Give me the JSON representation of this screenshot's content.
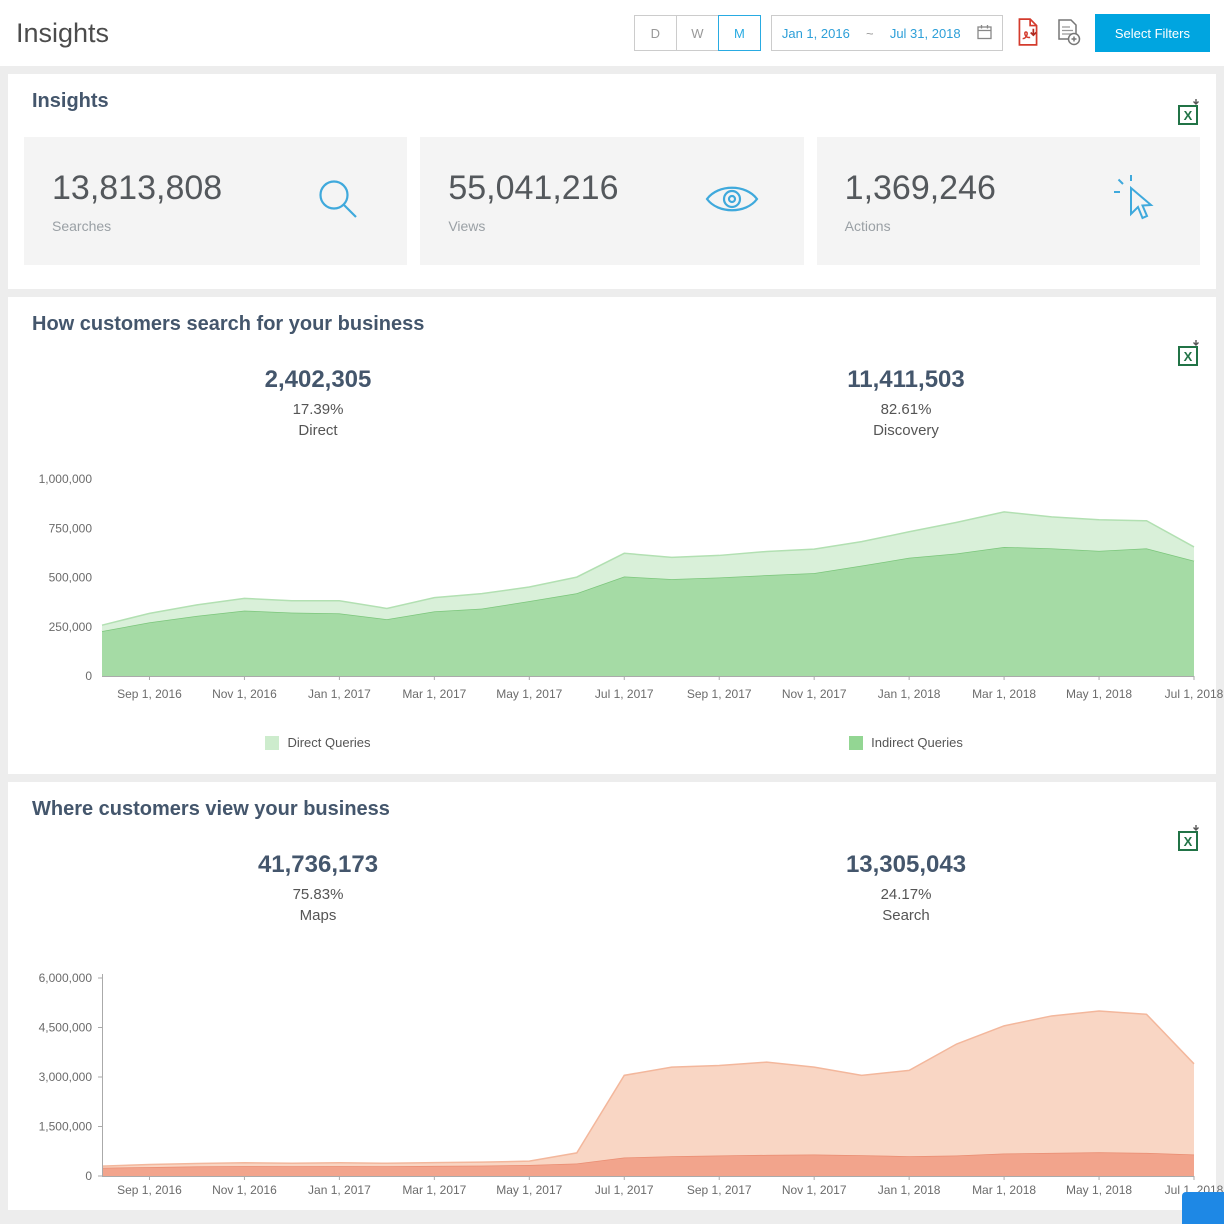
{
  "header": {
    "title": "Insights",
    "granularity": [
      {
        "label": "D",
        "active": false
      },
      {
        "label": "W",
        "active": false
      },
      {
        "label": "M",
        "active": true
      }
    ],
    "date_range": {
      "start": "Jan 1, 2016",
      "separator": "~",
      "end": "Jul 31, 2018"
    },
    "select_filters_label": "Select Filters",
    "accent_blue": "#29abe2",
    "button_blue": "#00a5e0"
  },
  "summary": {
    "title": "Insights",
    "stats": [
      {
        "value": "13,813,808",
        "label": "Searches",
        "icon": "search-icon"
      },
      {
        "value": "55,041,216",
        "label": "Views",
        "icon": "eye-icon"
      },
      {
        "value": "1,369,246",
        "label": "Actions",
        "icon": "click-icon"
      }
    ],
    "icon_color": "#3fa9dc"
  },
  "search_section": {
    "title": "How customers search for your business",
    "stats": [
      {
        "value": "2,402,305",
        "percent": "17.39%",
        "label": "Direct"
      },
      {
        "value": "11,411,503",
        "percent": "82.61%",
        "label": "Discovery"
      }
    ]
  },
  "views_section": {
    "title": "Where customers view your business",
    "stats": [
      {
        "value": "41,736,173",
        "percent": "75.83%",
        "label": "Maps"
      },
      {
        "value": "13,305,043",
        "percent": "24.17%",
        "label": "Search"
      }
    ]
  },
  "chart_data": [
    {
      "id": "queries",
      "type": "area",
      "stacked": true,
      "title": "How customers search for your business",
      "ylim": [
        0,
        1000000
      ],
      "y_ticks": [
        "0",
        "250,000",
        "500,000",
        "750,000",
        "1,000,000"
      ],
      "x_labels": [
        "Sep 1, 2016",
        "Nov 1, 2016",
        "Jan 1, 2017",
        "Mar 1, 2017",
        "May 1, 2017",
        "Jul 1, 2017",
        "Sep 1, 2017",
        "Nov 1, 2017",
        "Jan 1, 2018",
        "Mar 1, 2018",
        "May 1, 2018",
        "Jul 1, 2018"
      ],
      "x_label_first_index": 1,
      "x_label_step": 2,
      "y_axis_line": false,
      "series": [
        {
          "name": "Indirect Queries",
          "fill": "#a5dba5",
          "line": "#7bc67b",
          "values": [
            228000,
            272000,
            305000,
            332000,
            322000,
            318000,
            288000,
            328000,
            342000,
            380000,
            420000,
            505000,
            492000,
            500000,
            512000,
            522000,
            560000,
            600000,
            622000,
            655000,
            648000,
            635000,
            648000,
            585000
          ]
        },
        {
          "name": "Direct Queries",
          "fill": "#d9f0d9",
          "line": "#b2e0b2",
          "values": [
            30000,
            46000,
            56000,
            62000,
            60000,
            64000,
            55000,
            70000,
            76000,
            72000,
            82000,
            118000,
            110000,
            112000,
            120000,
            122000,
            122000,
            132000,
            158000,
            178000,
            160000,
            158000,
            140000,
            70000
          ]
        }
      ],
      "legend": [
        {
          "label": "Direct Queries",
          "color": "#cdeccd"
        },
        {
          "label": "Indirect Queries",
          "color": "#93d693"
        }
      ]
    },
    {
      "id": "views",
      "type": "area",
      "stacked": true,
      "title": "Where customers view your business",
      "ylim": [
        0,
        6000000
      ],
      "y_ticks": [
        "0",
        "1,500,000",
        "3,000,000",
        "4,500,000",
        "6,000,000"
      ],
      "x_labels": [
        "Sep 1, 2016",
        "Nov 1, 2016",
        "Jan 1, 2017",
        "Mar 1, 2017",
        "May 1, 2017",
        "Jul 1, 2017",
        "Sep 1, 2017",
        "Nov 1, 2017",
        "Jan 1, 2018",
        "Mar 1, 2018",
        "May 1, 2018",
        "Jul 1, 2018"
      ],
      "x_label_first_index": 1,
      "x_label_step": 2,
      "y_axis_line": true,
      "series": [
        {
          "name": "Search",
          "fill": "#f2a48c",
          "line": "#ea8d72",
          "values": [
            250000,
            270000,
            290000,
            300000,
            295000,
            300000,
            295000,
            305000,
            315000,
            335000,
            380000,
            560000,
            600000,
            620000,
            640000,
            650000,
            630000,
            600000,
            620000,
            680000,
            700000,
            720000,
            700000,
            650000
          ]
        },
        {
          "name": "Maps",
          "fill": "#f9d6c4",
          "line": "#f3b79c",
          "values": [
            50000,
            80000,
            90000,
            100000,
            90000,
            100000,
            90000,
            100000,
            105000,
            115000,
            320000,
            2490000,
            2700000,
            2730000,
            2810000,
            2650000,
            2420000,
            2600000,
            3380000,
            3870000,
            4150000,
            4280000,
            4200000,
            2750000
          ]
        }
      ]
    }
  ]
}
